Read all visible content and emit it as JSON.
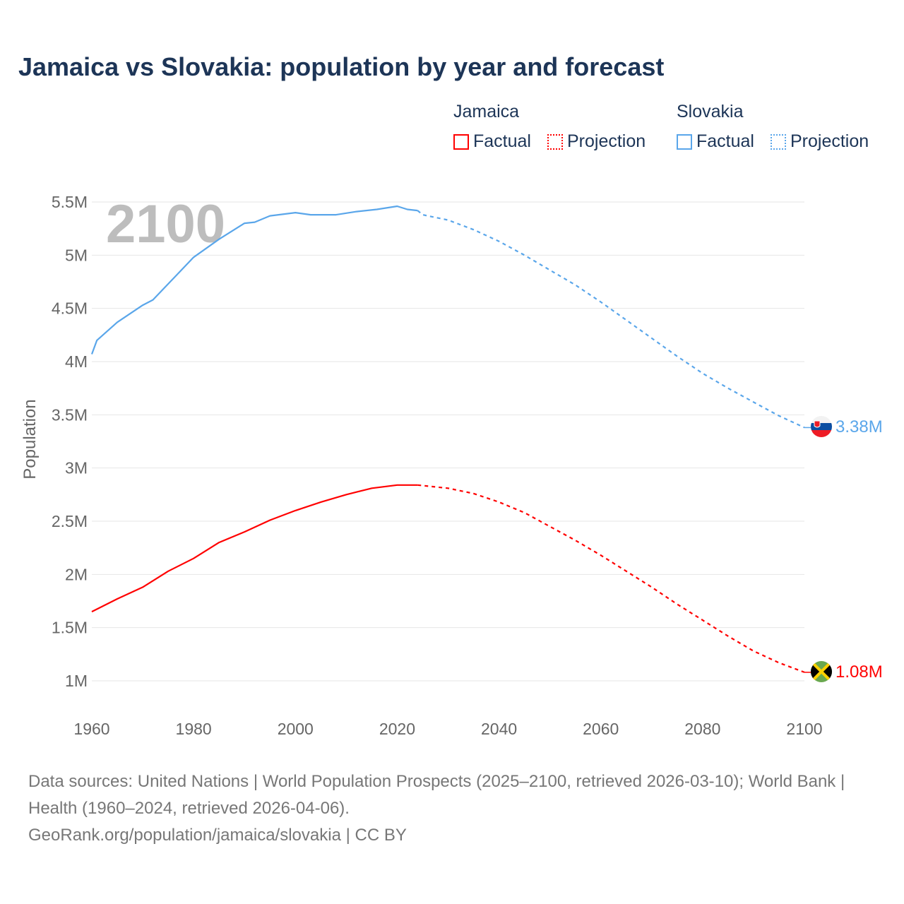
{
  "title": "Jamaica vs Slovakia: population by year and forecast",
  "legend": {
    "groups": [
      {
        "name": "Jamaica",
        "color": "#ff0000",
        "factual": "Factual",
        "projection": "Projection"
      },
      {
        "name": "Slovakia",
        "color": "#5aa6ea",
        "factual": "Factual",
        "projection": "Projection"
      }
    ]
  },
  "year_watermark": "2100",
  "footer": {
    "sources": "Data sources: United Nations | World Population Prospects (2025–2100, retrieved 2026-03-10); World Bank | Health (1960–2024, retrieved 2026-04-06).",
    "link": "GeoRank.org/population/jamaica/slovakia | CC BY"
  },
  "chart_data": {
    "type": "line",
    "ylabel": "Population",
    "xlabel": "",
    "xlim": [
      1960,
      2100
    ],
    "ylim": [
      1000000,
      5500000
    ],
    "x_ticks": [
      "1960",
      "1980",
      "2000",
      "2020",
      "2040",
      "2060",
      "2080",
      "2100"
    ],
    "y_ticks": [
      {
        "v": 1000000,
        "label": "1M"
      },
      {
        "v": 1500000,
        "label": "1.5M"
      },
      {
        "v": 2000000,
        "label": "2M"
      },
      {
        "v": 2500000,
        "label": "2.5M"
      },
      {
        "v": 3000000,
        "label": "3M"
      },
      {
        "v": 3500000,
        "label": "3.5M"
      },
      {
        "v": 4000000,
        "label": "4M"
      },
      {
        "v": 4500000,
        "label": "4.5M"
      },
      {
        "v": 5000000,
        "label": "5M"
      },
      {
        "v": 5500000,
        "label": "5.5M"
      }
    ],
    "grid": true,
    "series": [
      {
        "name": "Slovakia",
        "color": "#5aa6ea",
        "end_label": "3.38M",
        "factual": [
          [
            1960,
            4.07
          ],
          [
            1961,
            4.2
          ],
          [
            1965,
            4.37
          ],
          [
            1970,
            4.53
          ],
          [
            1972,
            4.58
          ],
          [
            1975,
            4.73
          ],
          [
            1980,
            4.98
          ],
          [
            1985,
            5.15
          ],
          [
            1990,
            5.3
          ],
          [
            1992,
            5.31
          ],
          [
            1995,
            5.37
          ],
          [
            2000,
            5.4
          ],
          [
            2003,
            5.38
          ],
          [
            2008,
            5.38
          ],
          [
            2012,
            5.41
          ],
          [
            2016,
            5.43
          ],
          [
            2020,
            5.46
          ],
          [
            2022,
            5.43
          ],
          [
            2024,
            5.42
          ]
        ],
        "projection": [
          [
            2024,
            5.42
          ],
          [
            2025,
            5.38
          ],
          [
            2030,
            5.33
          ],
          [
            2035,
            5.24
          ],
          [
            2040,
            5.13
          ],
          [
            2045,
            5.0
          ],
          [
            2050,
            4.86
          ],
          [
            2055,
            4.72
          ],
          [
            2060,
            4.56
          ],
          [
            2065,
            4.39
          ],
          [
            2070,
            4.22
          ],
          [
            2075,
            4.05
          ],
          [
            2080,
            3.89
          ],
          [
            2085,
            3.75
          ],
          [
            2090,
            3.62
          ],
          [
            2095,
            3.49
          ],
          [
            2100,
            3.38
          ]
        ]
      },
      {
        "name": "Jamaica",
        "color": "#ff0000",
        "end_label": "1.08M",
        "factual": [
          [
            1960,
            1.65
          ],
          [
            1965,
            1.77
          ],
          [
            1970,
            1.88
          ],
          [
            1975,
            2.03
          ],
          [
            1980,
            2.15
          ],
          [
            1985,
            2.3
          ],
          [
            1990,
            2.4
          ],
          [
            1995,
            2.51
          ],
          [
            2000,
            2.6
          ],
          [
            2005,
            2.68
          ],
          [
            2010,
            2.75
          ],
          [
            2015,
            2.81
          ],
          [
            2020,
            2.84
          ],
          [
            2024,
            2.84
          ]
        ],
        "projection": [
          [
            2024,
            2.84
          ],
          [
            2030,
            2.81
          ],
          [
            2035,
            2.76
          ],
          [
            2040,
            2.68
          ],
          [
            2045,
            2.58
          ],
          [
            2050,
            2.45
          ],
          [
            2055,
            2.32
          ],
          [
            2060,
            2.18
          ],
          [
            2065,
            2.03
          ],
          [
            2070,
            1.88
          ],
          [
            2075,
            1.72
          ],
          [
            2080,
            1.57
          ],
          [
            2085,
            1.42
          ],
          [
            2090,
            1.28
          ],
          [
            2095,
            1.17
          ],
          [
            2100,
            1.08
          ]
        ]
      }
    ]
  }
}
